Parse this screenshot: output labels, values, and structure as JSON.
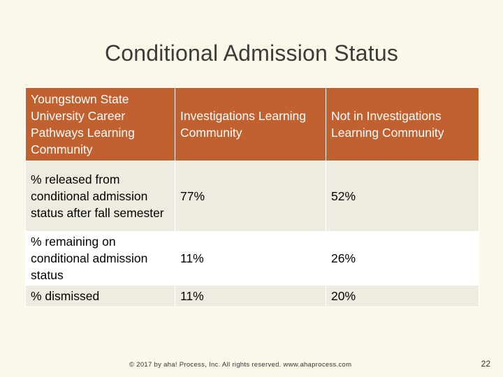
{
  "slide": {
    "title": "Conditional Admission Status",
    "footer": "© 2017 by aha! Process, Inc. All rights reserved. www.ahaprocess.com",
    "page_number": "22"
  },
  "table": {
    "headers": [
      "Youngstown State University Career Pathways Learning Community",
      "Investigations Learning Community",
      "Not in Investigations Learning Community"
    ],
    "rows": [
      {
        "label": "% released from conditional admission status after fall semester",
        "investigations": "77%",
        "not_investigations": "52%"
      },
      {
        "label": "% remaining on conditional admission status",
        "investigations": "11%",
        "not_investigations": "26%"
      },
      {
        "label": "% dismissed",
        "investigations": "11%",
        "not_investigations": "20%"
      }
    ]
  },
  "colors": {
    "header_bg": "#c0612f",
    "row_bg_alt": "#eeece1",
    "slide_bg": "#fbf7e9"
  }
}
